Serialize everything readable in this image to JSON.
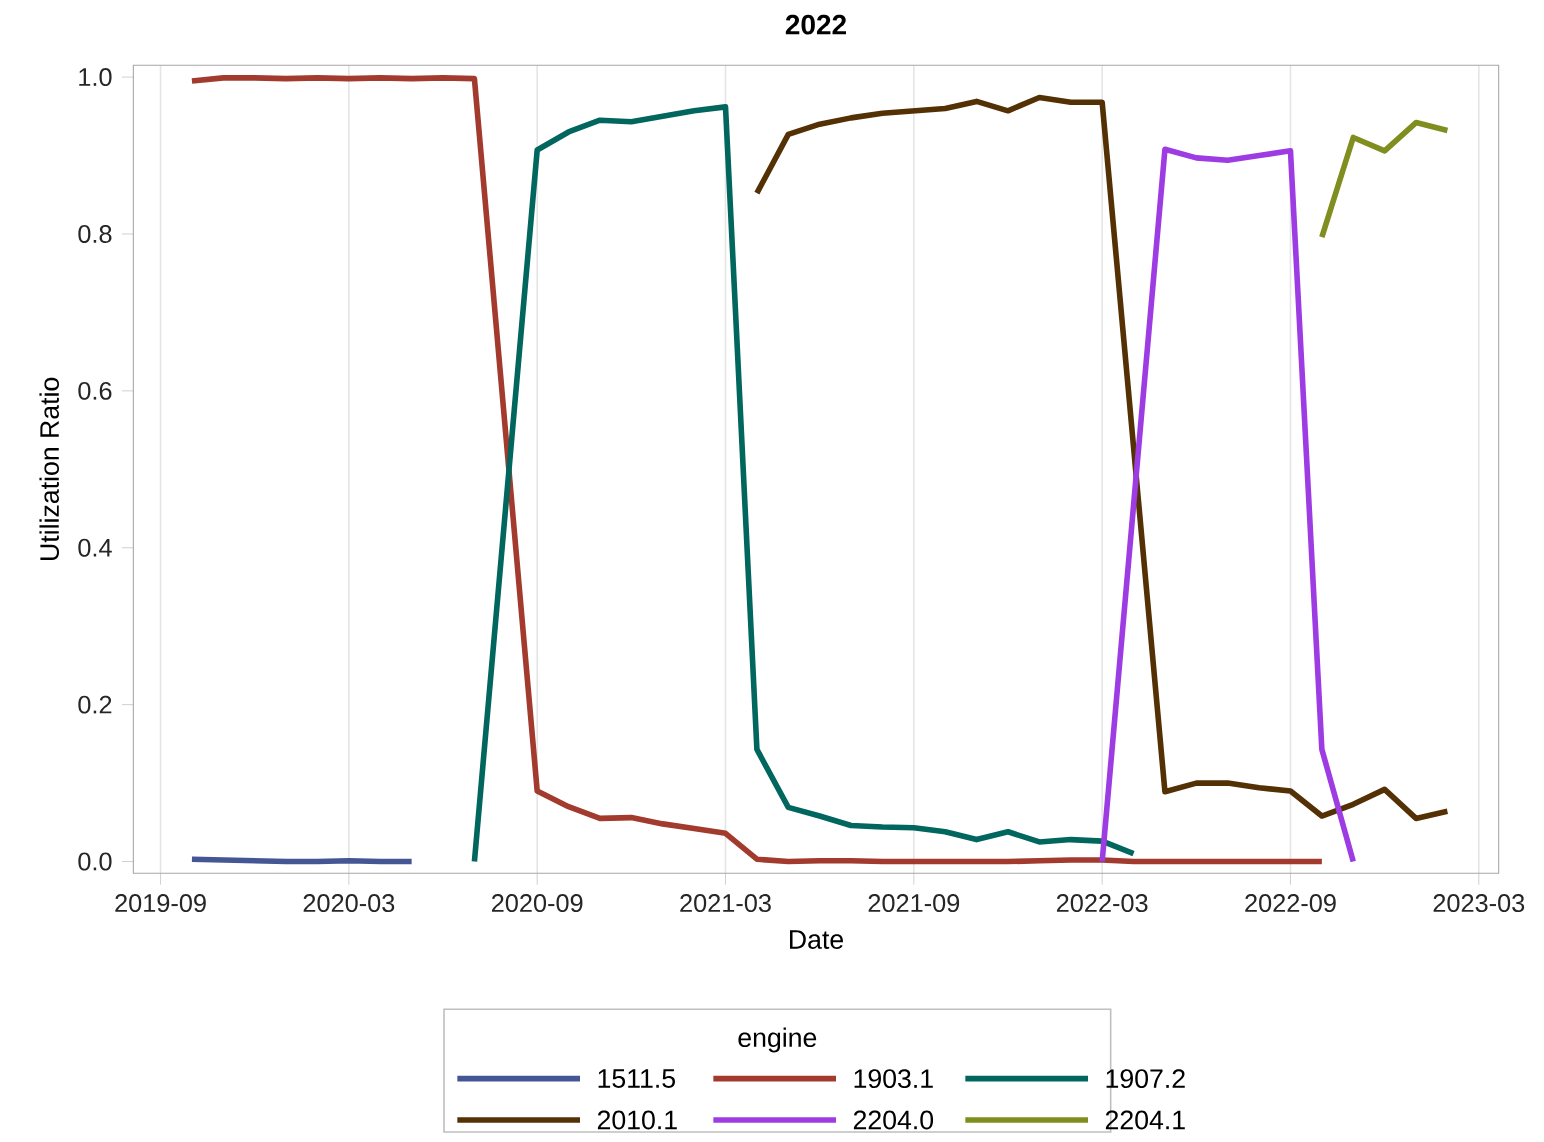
{
  "chart_data": {
    "type": "line",
    "title": "2022",
    "xlabel": "Date",
    "ylabel": "Utilization Ratio",
    "legend_title": "engine",
    "legend": "bottom",
    "grid": "x",
    "line_style": "solid",
    "marker": "none",
    "xlim": [
      "2019-08-05",
      "2023-03-20"
    ],
    "ylim": [
      -0.015,
      1.015
    ],
    "xticks": [
      "2019-09",
      "2020-03",
      "2020-09",
      "2021-03",
      "2021-09",
      "2022-03",
      "2022-09",
      "2023-03"
    ],
    "yticks": [
      {
        "value": 0,
        "label": "0.0"
      },
      {
        "value": 0.2,
        "label": "0.2"
      },
      {
        "value": 0.4,
        "label": "0.4"
      },
      {
        "value": 0.6,
        "label": "0.6"
      },
      {
        "value": 0.8,
        "label": "0.8"
      },
      {
        "value": 1,
        "label": "1.0"
      }
    ],
    "series": [
      {
        "name": "1511.5",
        "color": "#445694",
        "x": [
          "2019-10",
          "2019-11",
          "2019-12",
          "2020-01",
          "2020-02",
          "2020-03",
          "2020-04",
          "2020-05"
        ],
        "values": [
          0.003,
          0.002,
          0.001,
          0.0,
          0.0,
          0.001,
          0.0,
          0.0
        ]
      },
      {
        "name": "1903.1",
        "color": "#a23a2e",
        "x": [
          "2019-10",
          "2019-11",
          "2019-12",
          "2020-01",
          "2020-02",
          "2020-03",
          "2020-04",
          "2020-05",
          "2020-06",
          "2020-07",
          "2020-09",
          "2020-10",
          "2020-11",
          "2020-12",
          "2021-01",
          "2021-02",
          "2021-03",
          "2021-04",
          "2021-05",
          "2021-06",
          "2021-07",
          "2021-08",
          "2021-09",
          "2021-10",
          "2021-11",
          "2021-12",
          "2022-01",
          "2022-02",
          "2022-03",
          "2022-04",
          "2022-05",
          "2022-06",
          "2022-07",
          "2022-08",
          "2022-09",
          "2022-10"
        ],
        "values": [
          0.995,
          0.999,
          0.999,
          0.998,
          0.999,
          0.998,
          0.999,
          0.998,
          0.999,
          0.998,
          0.09,
          0.07,
          0.055,
          0.056,
          0.048,
          0.042,
          0.036,
          0.003,
          0.0,
          0.001,
          0.001,
          0.0,
          0.0,
          0.0,
          0.0,
          0.0,
          0.001,
          0.002,
          0.002,
          0.0,
          0.0,
          0.0,
          0.0,
          0.0,
          0.0,
          0.0
        ]
      },
      {
        "name": "1907.2",
        "color": "#01665e",
        "x": [
          "2020-07",
          "2020-09",
          "2020-10",
          "2020-11",
          "2020-12",
          "2021-01",
          "2021-02",
          "2021-03",
          "2021-04",
          "2021-05",
          "2021-06",
          "2021-07",
          "2021-08",
          "2021-09",
          "2021-10",
          "2021-11",
          "2021-12",
          "2022-01",
          "2022-02",
          "2022-03",
          "2022-04"
        ],
        "values": [
          0.0,
          0.907,
          0.93,
          0.945,
          0.943,
          0.95,
          0.957,
          0.962,
          0.143,
          0.069,
          0.058,
          0.046,
          0.044,
          0.043,
          0.038,
          0.028,
          0.038,
          0.025,
          0.028,
          0.026,
          0.01
        ]
      },
      {
        "name": "2010.1",
        "color": "#543005",
        "x": [
          "2021-04",
          "2021-05",
          "2021-06",
          "2021-07",
          "2021-08",
          "2021-09",
          "2021-10",
          "2021-11",
          "2021-12",
          "2022-01",
          "2022-02",
          "2022-03",
          "2022-05",
          "2022-06",
          "2022-07",
          "2022-08",
          "2022-09",
          "2022-10",
          "2022-11",
          "2022-12",
          "2023-01",
          "2023-02"
        ],
        "values": [
          0.852,
          0.927,
          0.94,
          0.948,
          0.954,
          0.957,
          0.96,
          0.969,
          0.957,
          0.974,
          0.968,
          0.968,
          0.089,
          0.1,
          0.1,
          0.094,
          0.09,
          0.058,
          0.073,
          0.092,
          0.055,
          0.064
        ]
      },
      {
        "name": "2204.0",
        "color": "#9d3ce3",
        "x": [
          "2022-03",
          "2022-05",
          "2022-06",
          "2022-07",
          "2022-08",
          "2022-09",
          "2022-10",
          "2022-11"
        ],
        "values": [
          0.0,
          0.908,
          0.897,
          0.894,
          0.9,
          0.906,
          0.143,
          0.0
        ]
      },
      {
        "name": "2204.1",
        "color": "#7f8e1f",
        "x": [
          "2022-10",
          "2022-11",
          "2022-12",
          "2023-01",
          "2023-02"
        ],
        "values": [
          0.796,
          0.923,
          0.906,
          0.942,
          0.932
        ]
      }
    ]
  }
}
